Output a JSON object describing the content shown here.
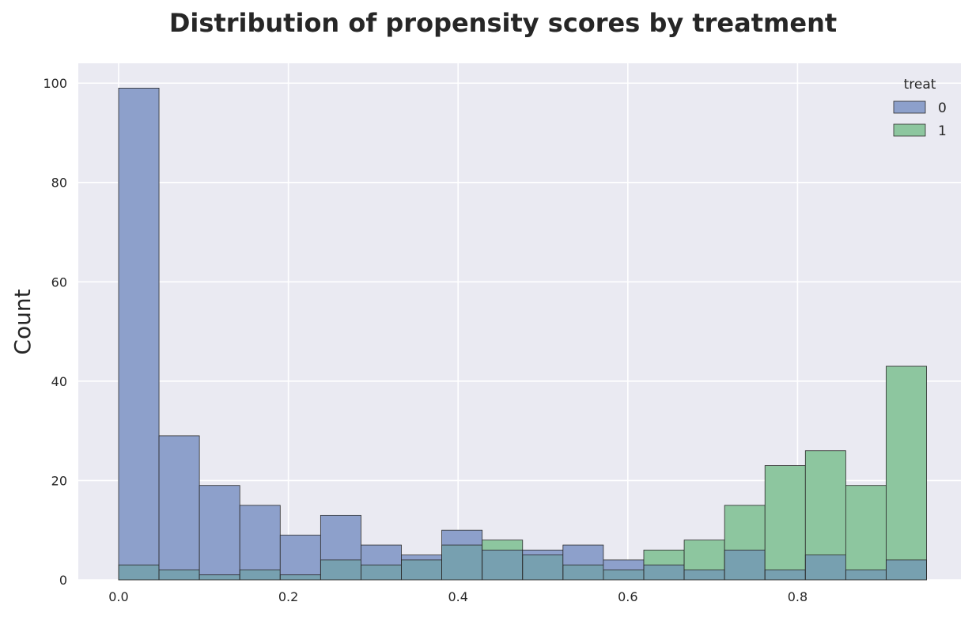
{
  "chart_data": {
    "type": "bar",
    "title": "Distribution of propensity scores by treatment",
    "xlabel": "",
    "ylabel": "Count",
    "xlim": [
      -0.0475,
      0.9925
    ],
    "ylim": [
      0,
      104
    ],
    "x_ticks": [
      0.0,
      0.2,
      0.4,
      0.6,
      0.8
    ],
    "x_tick_labels": [
      "0.0",
      "0.2",
      "0.4",
      "0.6",
      "0.8"
    ],
    "y_ticks": [
      0,
      20,
      40,
      60,
      80,
      100
    ],
    "y_tick_labels": [
      "0",
      "20",
      "40",
      "60",
      "80",
      "100"
    ],
    "grid": true,
    "legend": {
      "title": "treat",
      "placement": "top-right"
    },
    "bin_edges": [
      0.0,
      0.0476,
      0.0952,
      0.1428,
      0.1904,
      0.238,
      0.2856,
      0.3332,
      0.3808,
      0.4284,
      0.476,
      0.5236,
      0.5712,
      0.6188,
      0.6664,
      0.714,
      0.7616,
      0.8092,
      0.8568,
      0.9044,
      0.952
    ],
    "series": [
      {
        "name": "0",
        "color": "#8da0cb",
        "values": [
          99,
          29,
          19,
          15,
          9,
          13,
          7,
          5,
          10,
          6,
          6,
          7,
          4,
          3,
          2,
          6,
          2,
          5,
          2,
          4
        ]
      },
      {
        "name": "1",
        "color": "#8dc69f",
        "values": [
          3,
          2,
          1,
          2,
          1,
          4,
          3,
          4,
          7,
          8,
          5,
          3,
          2,
          6,
          8,
          15,
          23,
          26,
          19,
          43
        ]
      }
    ],
    "colors": {
      "background": "#eaeaf2",
      "grid": "#ffffff",
      "overlap": "#77a0b0"
    }
  }
}
